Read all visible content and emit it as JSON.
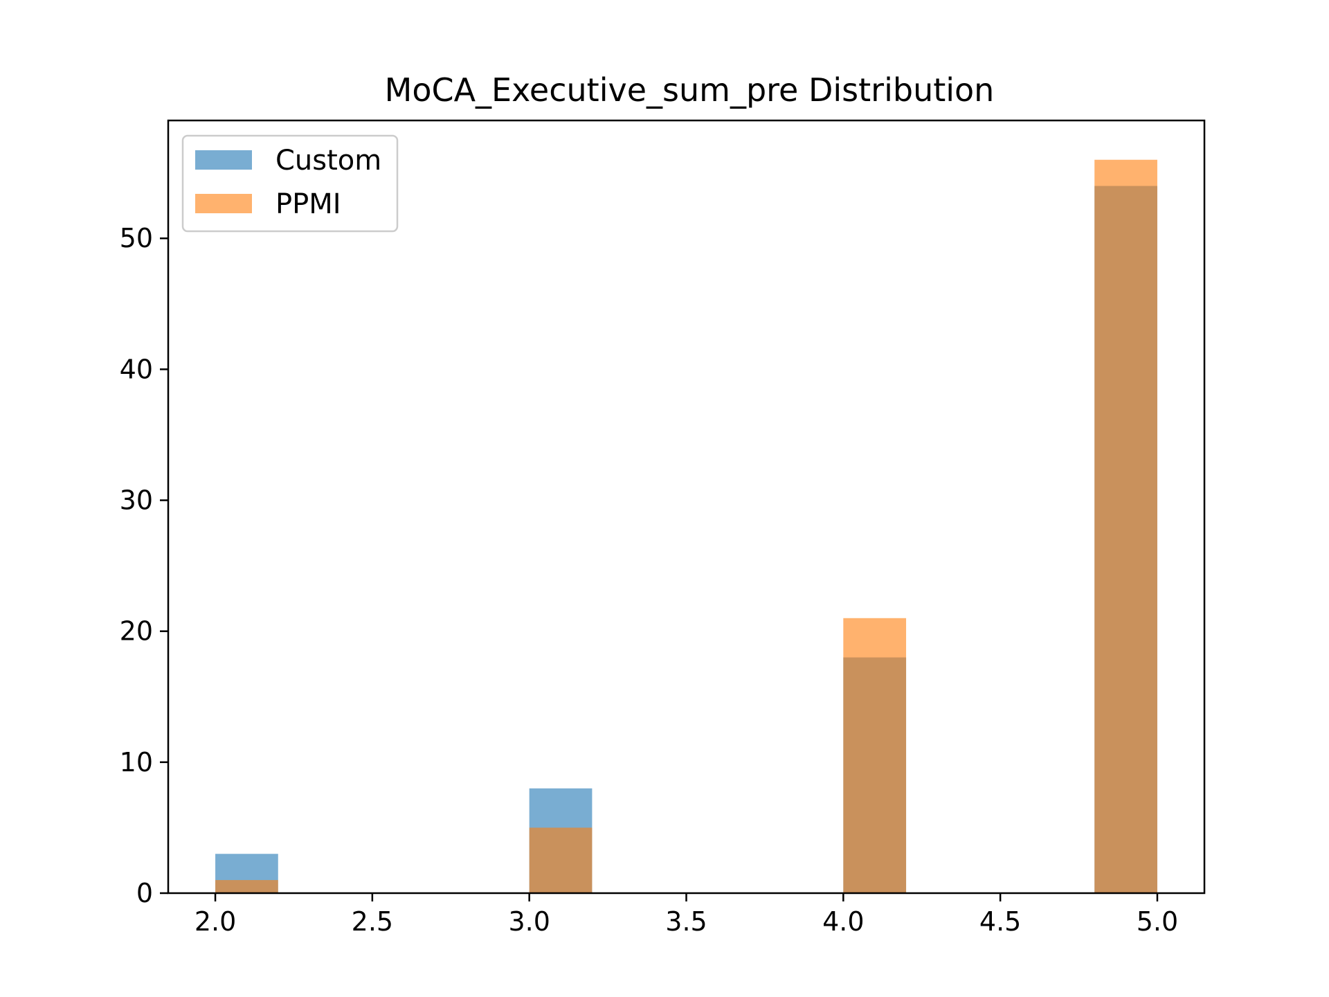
{
  "chart_data": {
    "type": "bar",
    "title": "MoCA_Executive_sum_pre Distribution",
    "xlabel": "",
    "ylabel": "",
    "xlim": [
      1.85,
      5.15
    ],
    "ylim": [
      0,
      59
    ],
    "x_ticks": [
      2.0,
      2.5,
      3.0,
      3.5,
      4.0,
      4.5,
      5.0
    ],
    "x_tick_labels": [
      "2.0",
      "2.5",
      "3.0",
      "3.5",
      "4.0",
      "4.5",
      "5.0"
    ],
    "y_ticks": [
      0,
      10,
      20,
      30,
      40,
      50
    ],
    "y_tick_labels": [
      "0",
      "10",
      "20",
      "30",
      "40",
      "50"
    ],
    "bin_width": 0.2,
    "grid": false,
    "legend_position": "top-left",
    "series": [
      {
        "name": "Custom",
        "color": "#1f77b4",
        "opacity": 0.6,
        "bins": [
          {
            "x_start": 2.0,
            "count": 3
          },
          {
            "x_start": 3.0,
            "count": 8
          },
          {
            "x_start": 4.0,
            "count": 18
          },
          {
            "x_start": 4.8,
            "count": 54
          }
        ]
      },
      {
        "name": "PPMI",
        "color": "#ff7f0e",
        "opacity": 0.6,
        "bins": [
          {
            "x_start": 2.0,
            "count": 1
          },
          {
            "x_start": 3.0,
            "count": 5
          },
          {
            "x_start": 4.0,
            "count": 21
          },
          {
            "x_start": 4.8,
            "count": 56
          }
        ]
      }
    ]
  }
}
